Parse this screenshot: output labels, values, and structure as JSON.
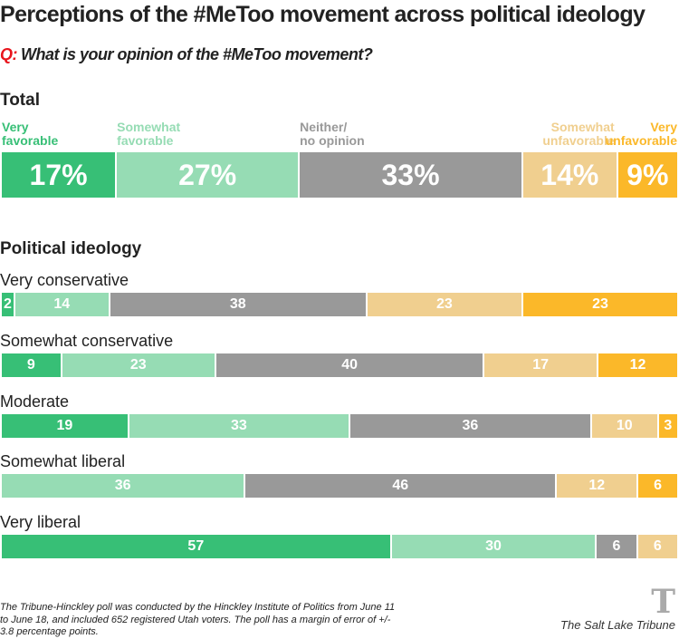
{
  "chart_data": {
    "type": "bar",
    "orientation": "horizontal-stacked",
    "title": "Perceptions of the #MeToo movement across political ideology",
    "question_label": "Q:",
    "question": "What is your opinion of the #MeToo movement?",
    "colors": [
      "#37bf76",
      "#96dcb4",
      "#999999",
      "#f0cf8f",
      "#fbb829"
    ],
    "categories": [
      "Very favorable",
      "Somewhat favorable",
      "Neither/ no opinion",
      "Somewhat unfavorable",
      "Very unfavorable"
    ],
    "category_lines": [
      [
        "Very",
        "favorable"
      ],
      [
        "Somewhat",
        "favorable"
      ],
      [
        "Neither/",
        "no opinion"
      ],
      [
        "Somewhat",
        "unfavorable"
      ],
      [
        "Very",
        "unfavorable"
      ]
    ],
    "total": {
      "heading": "Total",
      "values": [
        17,
        27,
        33,
        14,
        9
      ],
      "labels": [
        "17%",
        "27%",
        "33%",
        "14%",
        "9%"
      ]
    },
    "ideology_heading": "Political ideology",
    "rows": [
      {
        "name": "Very conservative",
        "values": [
          2,
          14,
          38,
          23,
          23
        ]
      },
      {
        "name": "Somewhat conservative",
        "values": [
          9,
          23,
          40,
          17,
          12
        ]
      },
      {
        "name": "Moderate",
        "values": [
          19,
          33,
          36,
          10,
          3
        ]
      },
      {
        "name": "Somewhat liberal",
        "values": [
          0,
          36,
          46,
          12,
          6
        ],
        "note_order": "starts at very favorable"
      },
      {
        "name": "Very liberal",
        "values": [
          57,
          30,
          6,
          6,
          0
        ]
      }
    ]
  },
  "footer": {
    "note": "The Tribune-Hinckley poll was conducted by the Hinckley Institute of Politics from June 11 to June 18, and included 652 registered Utah voters. The poll has a margin of error of +/- 3.8 percentage points.",
    "logo_text": "The Salt Lake Tribune"
  }
}
